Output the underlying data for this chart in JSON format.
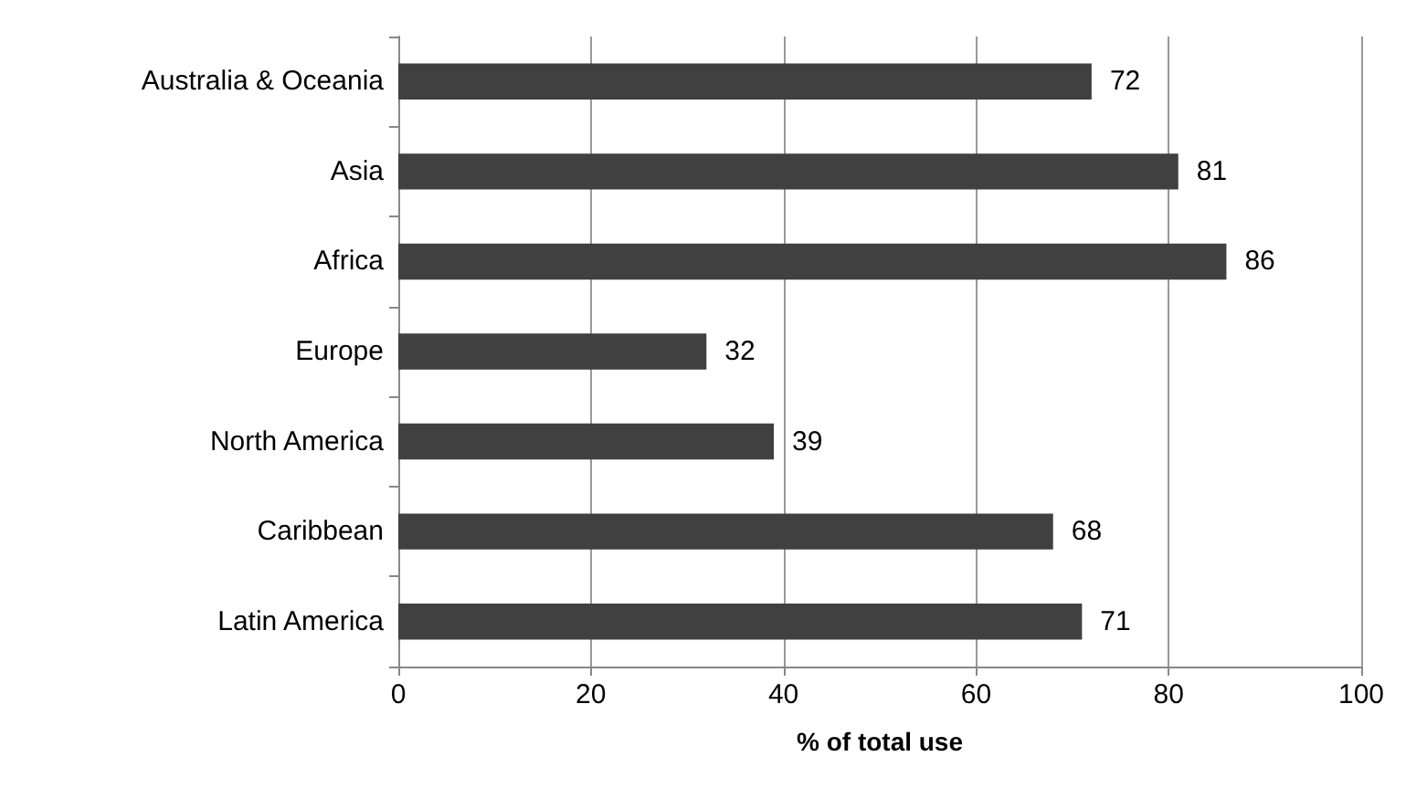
{
  "chart_data": {
    "type": "bar",
    "orientation": "horizontal",
    "xlabel": "% of total use",
    "categories": [
      "Australia & Oceania",
      "Asia",
      "Africa",
      "Europe",
      "North America",
      "Caribbean",
      "Latin America"
    ],
    "values": [
      72,
      81,
      86,
      32,
      39,
      68,
      71
    ],
    "color": "#404040",
    "xlim": [
      0,
      100
    ],
    "xticks": [
      0,
      20,
      40,
      60,
      80,
      100
    ],
    "grid": "x",
    "data_labels": true
  }
}
